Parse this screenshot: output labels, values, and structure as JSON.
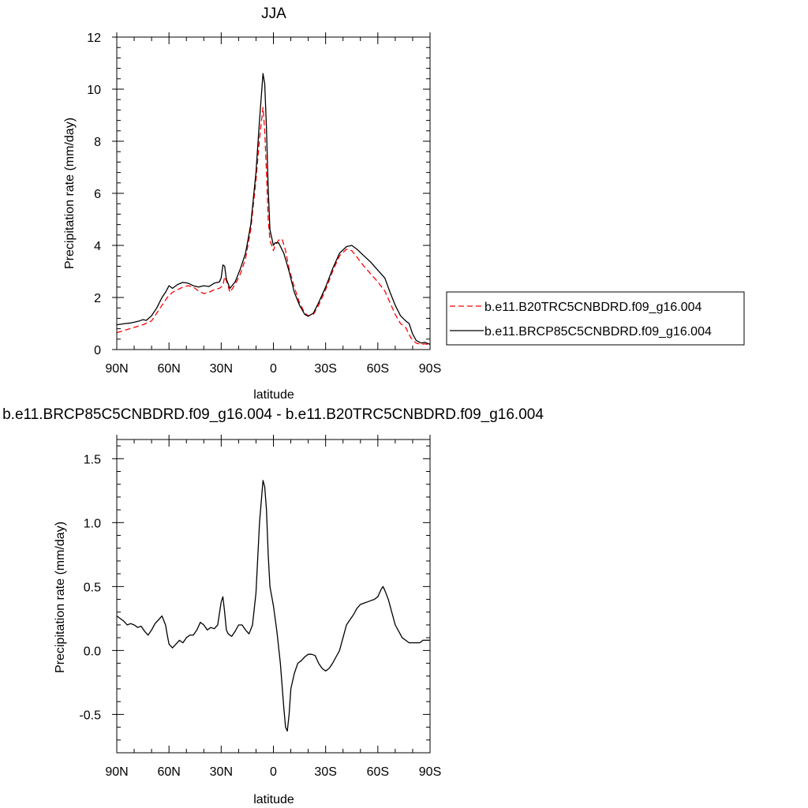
{
  "chart_data": [
    {
      "type": "line",
      "title": "JJA",
      "xlabel": "latitude",
      "ylabel": "Precipitation rate (mm/day)",
      "xlim": [
        90,
        -90
      ],
      "ylim": [
        0,
        12
      ],
      "x_ticks": [
        90,
        60,
        30,
        0,
        -30,
        -60,
        -90
      ],
      "x_tick_labels": [
        "90N",
        "60N",
        "30N",
        "0",
        "30S",
        "60S",
        "90S"
      ],
      "y_ticks": [
        0,
        2,
        4,
        6,
        8,
        10,
        12
      ],
      "y_tick_labels": [
        "0",
        "2",
        "4",
        "6",
        "8",
        "10",
        "12"
      ],
      "legend_position": "right",
      "series": [
        {
          "name": "b.e11.B20TRC5CNBDRD.f09_g16.004",
          "color": "#ff0000",
          "dash": "dashed",
          "x": [
            90,
            85,
            80,
            75,
            70,
            67,
            64,
            61,
            58,
            55,
            52,
            49,
            46,
            43,
            40,
            37,
            34,
            31,
            29,
            28,
            27,
            25,
            22,
            19,
            16,
            13,
            10,
            8,
            6,
            5,
            4,
            3,
            2,
            0,
            -1,
            -3,
            -5,
            -7,
            -9,
            -12,
            -15,
            -18,
            -20,
            -23,
            -26,
            -30,
            -34,
            -38,
            -42,
            -45,
            -48,
            -52,
            -56,
            -60,
            -64,
            -67,
            -70,
            -73,
            -76,
            -79,
            -82,
            -85,
            -87,
            -90
          ],
          "values": [
            0.65,
            0.75,
            0.85,
            0.95,
            1.1,
            1.4,
            1.7,
            2.0,
            2.2,
            2.3,
            2.4,
            2.45,
            2.4,
            2.25,
            2.15,
            2.2,
            2.3,
            2.35,
            2.45,
            2.8,
            2.65,
            2.2,
            2.5,
            2.9,
            3.5,
            4.6,
            6.5,
            8.1,
            9.3,
            8.4,
            6.8,
            5.0,
            4.2,
            3.8,
            4.0,
            4.2,
            4.25,
            3.8,
            3.1,
            2.4,
            1.8,
            1.4,
            1.3,
            1.35,
            1.7,
            2.3,
            3.0,
            3.6,
            3.85,
            3.8,
            3.55,
            3.2,
            2.9,
            2.6,
            2.25,
            1.8,
            1.35,
            1.0,
            0.85,
            0.45,
            0.25,
            0.2,
            0.22,
            0.18
          ]
        },
        {
          "name": "b.e11.BRCP85C5CNBDRD.f09_g16.004",
          "color": "#000000",
          "dash": "solid",
          "x": [
            90,
            88,
            85,
            82,
            80,
            77,
            75,
            73,
            70,
            67,
            64,
            62,
            60,
            58,
            55,
            52,
            49,
            46,
            43,
            40,
            37,
            34,
            31,
            30,
            29,
            28,
            27,
            25,
            22,
            19,
            16,
            13,
            10,
            8,
            6,
            5,
            4,
            3,
            2,
            0,
            -1,
            -3,
            -6,
            -9,
            -12,
            -15,
            -18,
            -20,
            -23,
            -26,
            -30,
            -34,
            -38,
            -42,
            -45,
            -48,
            -52,
            -56,
            -60,
            -64,
            -67,
            -70,
            -73,
            -76,
            -78,
            -80,
            -82,
            -85,
            -87,
            -90
          ],
          "values": [
            0.95,
            0.97,
            1.0,
            1.02,
            1.05,
            1.1,
            1.15,
            1.12,
            1.3,
            1.6,
            2.0,
            2.2,
            2.45,
            2.35,
            2.5,
            2.58,
            2.55,
            2.45,
            2.4,
            2.45,
            2.42,
            2.55,
            2.6,
            2.75,
            3.25,
            3.2,
            2.7,
            2.35,
            2.6,
            3.1,
            3.7,
            4.8,
            6.8,
            8.8,
            10.6,
            10.2,
            8.5,
            6.2,
            4.6,
            4.0,
            4.1,
            4.1,
            3.7,
            3.0,
            2.2,
            1.7,
            1.35,
            1.28,
            1.4,
            1.8,
            2.4,
            3.1,
            3.7,
            3.95,
            4.0,
            3.85,
            3.6,
            3.35,
            3.05,
            2.75,
            2.2,
            1.7,
            1.3,
            1.1,
            1.0,
            0.6,
            0.35,
            0.25,
            0.28,
            0.2
          ]
        }
      ]
    },
    {
      "type": "line",
      "title": "b.e11.BRCP85C5CNBDRD.f09_g16.004 - b.e11.B20TRC5CNBDRD.f09_g16.004",
      "xlabel": "latitude",
      "ylabel": "Precipitation rate (mm/day)",
      "xlim": [
        90,
        -90
      ],
      "ylim": [
        -0.8,
        1.65
      ],
      "x_ticks": [
        90,
        60,
        30,
        0,
        -30,
        -60,
        -90
      ],
      "x_tick_labels": [
        "90N",
        "60N",
        "30N",
        "0",
        "30S",
        "60S",
        "90S"
      ],
      "y_ticks": [
        -0.5,
        0.0,
        0.5,
        1.0,
        1.5
      ],
      "y_tick_labels": [
        "-0.5",
        "0.0",
        "0.5",
        "1.0",
        "1.5"
      ],
      "series": [
        {
          "color": "#000000",
          "dash": "solid",
          "x": [
            90,
            88,
            86,
            84,
            82,
            80,
            78,
            76,
            74,
            72,
            70,
            68,
            66,
            64,
            62,
            61,
            60,
            58,
            56,
            54,
            52,
            50,
            48,
            46,
            44,
            42,
            40,
            38,
            36,
            34,
            32,
            30,
            29,
            28,
            27,
            26,
            24,
            22,
            20,
            18,
            16,
            14,
            12,
            10,
            8,
            6,
            5,
            4,
            3,
            2,
            0,
            -2,
            -4,
            -6,
            -7,
            -8,
            -9,
            -10,
            -12,
            -14,
            -16,
            -18,
            -20,
            -22,
            -24,
            -26,
            -28,
            -30,
            -32,
            -34,
            -36,
            -38,
            -40,
            -42,
            -44,
            -46,
            -48,
            -50,
            -52,
            -54,
            -56,
            -58,
            -60,
            -62,
            -63,
            -64,
            -66,
            -68,
            -70,
            -72,
            -74,
            -76,
            -78,
            -80,
            -82,
            -84,
            -86,
            -88,
            -90
          ],
          "values": [
            0.27,
            0.25,
            0.23,
            0.2,
            0.21,
            0.2,
            0.18,
            0.19,
            0.15,
            0.12,
            0.16,
            0.21,
            0.24,
            0.27,
            0.2,
            0.12,
            0.05,
            0.02,
            0.05,
            0.08,
            0.06,
            0.1,
            0.12,
            0.12,
            0.16,
            0.22,
            0.2,
            0.16,
            0.18,
            0.17,
            0.2,
            0.38,
            0.42,
            0.3,
            0.16,
            0.13,
            0.11,
            0.15,
            0.2,
            0.2,
            0.16,
            0.13,
            0.2,
            0.45,
            1.0,
            1.33,
            1.28,
            1.1,
            0.75,
            0.5,
            0.35,
            0.15,
            -0.1,
            -0.45,
            -0.6,
            -0.63,
            -0.5,
            -0.3,
            -0.18,
            -0.1,
            -0.08,
            -0.05,
            -0.03,
            -0.03,
            -0.04,
            -0.1,
            -0.14,
            -0.16,
            -0.14,
            -0.1,
            -0.05,
            0.0,
            0.1,
            0.2,
            0.24,
            0.28,
            0.33,
            0.36,
            0.37,
            0.38,
            0.39,
            0.4,
            0.42,
            0.48,
            0.5,
            0.47,
            0.4,
            0.3,
            0.2,
            0.15,
            0.1,
            0.08,
            0.06,
            0.06,
            0.06,
            0.06,
            0.08,
            0.08,
            0.08
          ]
        }
      ]
    }
  ]
}
